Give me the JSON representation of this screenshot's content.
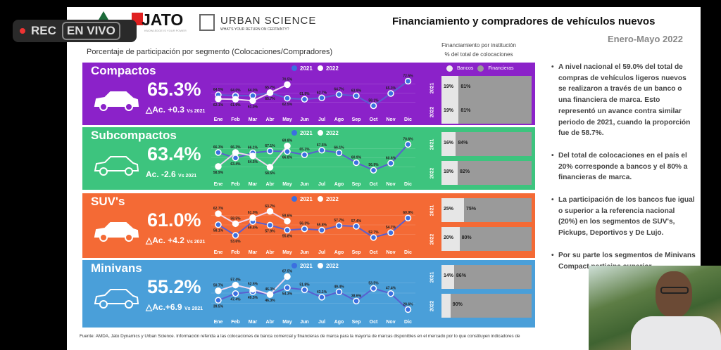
{
  "overlay": {
    "rec": "REC",
    "live": "EN VIVO"
  },
  "header": {
    "logo_jato": "JATO",
    "jato_tag": "KNOWLEDGE IS YOUR POWER",
    "logo_us": "URBAN SCIENCE",
    "us_tag": "WHAT'S YOUR RETURN ON CERTAINTY?",
    "title": "Financiamiento y compradores de vehículos nuevos",
    "period": "Enero-Mayo 2022"
  },
  "left_title": "Porcentaje de participación por segmento (Colocaciones/Compradores)",
  "fin_title": [
    "Financiamiento por institución",
    "% del total de colocaciones"
  ],
  "legend": {
    "y2021": "2021",
    "y2022": "2022",
    "bancos": "Bancos",
    "financieras": "Financieras"
  },
  "colors": {
    "compactos": "#8b22c9",
    "subcompactos": "#3dc47e",
    "suvs": "#f46a35",
    "minivans": "#4a9fd9"
  },
  "months": [
    "Ene",
    "Feb",
    "Mar",
    "Abr",
    "May",
    "Jun",
    "Jul",
    "Ago",
    "Sep",
    "Oct",
    "Nov",
    "Dic"
  ],
  "chart_data": [
    {
      "type": "line",
      "title": "Compactos",
      "ylim": [
        55,
        76
      ],
      "series": [
        {
          "name": "2021",
          "values": [
            64.5,
            64.0,
            64.0,
            65.7,
            62.5,
            61.9,
            62.7,
            64.7,
            63.9,
            58.1,
            65.3,
            72.5
          ]
        },
        {
          "name": "2022",
          "values": [
            62.1,
            61.9,
            61.0,
            65.7,
            70.5
          ]
        }
      ]
    },
    {
      "type": "line",
      "title": "Subcompactos",
      "ylim": [
        54,
        73
      ],
      "series": [
        {
          "name": "2021",
          "values": [
            66.3,
            63.4,
            66.1,
            67.1,
            66.8,
            65.1,
            67.5,
            66.1,
            60.9,
            56.9,
            60.6,
            70.6
          ]
        },
        {
          "name": "2022",
          "values": [
            58.9,
            66.3,
            64.5,
            58.5,
            69.8
          ]
        }
      ]
    },
    {
      "type": "line",
      "title": "SUV's",
      "ylim": [
        50,
        66
      ],
      "series": [
        {
          "name": "2021",
          "values": [
            58.1,
            53.6,
            59.4,
            57.9,
            55.8,
            56.3,
            55.8,
            57.7,
            57.4,
            52.7,
            54.7,
            60.9
          ]
        },
        {
          "name": "2022",
          "values": [
            62.7,
            58.5,
            61.0,
            63.7,
            59.6
          ]
        }
      ]
    },
    {
      "type": "line",
      "title": "Minivans",
      "ylim": [
        24,
        72
      ],
      "series": [
        {
          "name": "2021",
          "values": [
            39.5,
            47.4,
            49.5,
            46.3,
            54.3,
            51.8,
            43.1,
            49.4,
            38.6,
            53.5,
            47.4,
            28.6
          ]
        },
        {
          "name": "2022",
          "values": [
            50.7,
            57.4,
            52.5,
            46.3,
            67.5
          ]
        }
      ]
    }
  ],
  "segments": [
    {
      "name": "Compactos",
      "pct": "65.3%",
      "delta": "△Ac. +0.3",
      "vs": "Vs 2021",
      "fin": [
        {
          "year": "2021",
          "bancos": 19,
          "b": "19%",
          "f": "81%"
        },
        {
          "year": "2022",
          "bancos": 19,
          "b": "19%",
          "f": "81%"
        }
      ]
    },
    {
      "name": "Subcompactos",
      "pct": "63.4%",
      "delta": "Ac. -2.6",
      "vs": "Vs 2021",
      "fin": [
        {
          "year": "2021",
          "bancos": 16,
          "b": "16%",
          "f": "84%"
        },
        {
          "year": "2022",
          "bancos": 18,
          "b": "18%",
          "f": "82%"
        }
      ]
    },
    {
      "name": "SUV's",
      "pct": "61.0%",
      "delta": "△Ac. +4.2",
      "vs": "Vs 2021",
      "fin": [
        {
          "year": "2021",
          "bancos": 25,
          "b": "25%",
          "f": "75%"
        },
        {
          "year": "2022",
          "bancos": 20,
          "b": "20%",
          "f": "80%"
        }
      ]
    },
    {
      "name": "Minivans",
      "pct": "55.2%",
      "delta": "△Ac.+6.9",
      "vs": "Vs 2021",
      "fin": [
        {
          "year": "2021",
          "bancos": 14,
          "b": "14%",
          "f": "86%"
        },
        {
          "year": "2022",
          "bancos": 10,
          "b": null,
          "f": "90%"
        }
      ]
    }
  ],
  "bullets": [
    "A nivel nacional el 59.0% del total de compras de vehículos ligeros nuevos se realizaron a través de un banco o una financiera de marca. Esto representó un avance contra similar periodo de 2021, cuando la proporción fue de 58.7%.",
    "Del total de colocaciones en el país el 20% corresponde a bancos y el 80% a financieras de marca.",
    "La participación de los bancos fue igual o superior a la referencia nacional (20%) en los segmentos de SUV's, Pickups, Deportivos y De Lujo.",
    "Por su parte los segmentos de Minivans Compact participa superior"
  ],
  "footer": "Fuente: AMDA, Jato Dynamics y Urban Science. Información referida a las colocaciones de banca comercial y financieras de marca para la mayoría de marcas disponibles en el mercado por lo que constituyen indicadores de"
}
